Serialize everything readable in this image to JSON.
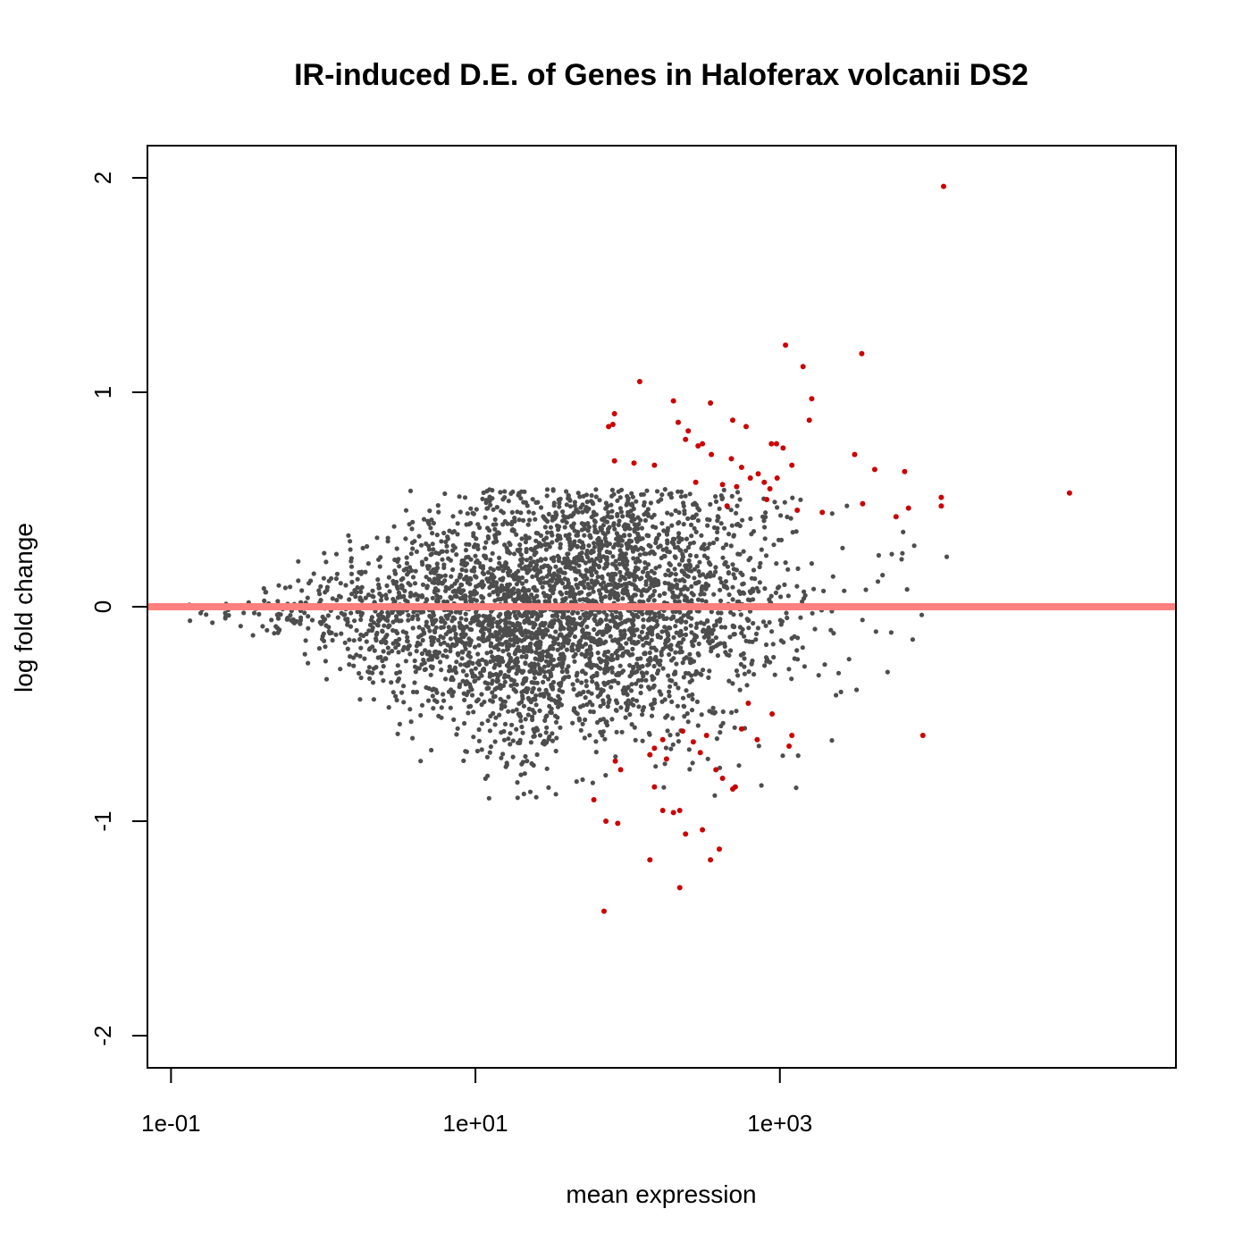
{
  "chart_data": {
    "type": "scatter",
    "title": "IR-induced D.E. of Genes in Haloferax volcanii DS2",
    "xlabel": "mean expression",
    "ylabel": "log fold change",
    "x_scale": "log10",
    "xlim": [
      0.07,
      400000
    ],
    "ylim": [
      -2.15,
      2.15
    ],
    "x_ticks": [
      {
        "value": 0.1,
        "label": "1e-01"
      },
      {
        "value": 10,
        "label": "1e+01"
      },
      {
        "value": 1000,
        "label": "1e+03"
      }
    ],
    "y_ticks": [
      {
        "value": -2,
        "label": "-2"
      },
      {
        "value": -1,
        "label": "-1"
      },
      {
        "value": 0,
        "label": "0"
      },
      {
        "value": 1,
        "label": "1"
      },
      {
        "value": 2,
        "label": "2"
      }
    ],
    "reference_line": {
      "y": 0,
      "color": "#ff7f7f"
    },
    "grid": false,
    "colors": {
      "not_significant": "#4d4d4d",
      "significant": "#cc0000"
    },
    "background_points_description_count": 3800,
    "series": [
      {
        "name": "",
        "color": "#cc0000",
        "points": [
          [
            11900,
            1.96
          ],
          [
            1090,
            1.22
          ],
          [
            3450,
            1.18
          ],
          [
            1420,
            1.12
          ],
          [
            120,
            1.05
          ],
          [
            1620,
            0.97
          ],
          [
            200,
            0.96
          ],
          [
            350,
            0.95
          ],
          [
            82,
            0.9
          ],
          [
            490,
            0.87
          ],
          [
            1560,
            0.87
          ],
          [
            215,
            0.86
          ],
          [
            80,
            0.85
          ],
          [
            75,
            0.84
          ],
          [
            600,
            0.84
          ],
          [
            250,
            0.82
          ],
          [
            240,
            0.78
          ],
          [
            310,
            0.76
          ],
          [
            290,
            0.75
          ],
          [
            355,
            0.71
          ],
          [
            480,
            0.69
          ],
          [
            1050,
            0.74
          ],
          [
            880,
            0.76
          ],
          [
            950,
            0.76
          ],
          [
            4200,
            0.64
          ],
          [
            6600,
            0.63
          ],
          [
            3100,
            0.71
          ],
          [
            560,
            0.65
          ],
          [
            720,
            0.62
          ],
          [
            640,
            0.6
          ],
          [
            82,
            0.68
          ],
          [
            110,
            0.67
          ],
          [
            150,
            0.66
          ],
          [
            280,
            0.58
          ],
          [
            420,
            0.57
          ],
          [
            520,
            0.56
          ],
          [
            790,
            0.58
          ],
          [
            860,
            0.55
          ],
          [
            960,
            0.6
          ],
          [
            1200,
            0.66
          ],
          [
            11500,
            0.51
          ],
          [
            11500,
            0.47
          ],
          [
            7000,
            0.46
          ],
          [
            5800,
            0.42
          ],
          [
            3500,
            0.48
          ],
          [
            80000,
            0.53
          ],
          [
            1900,
            0.44
          ],
          [
            1300,
            0.45
          ],
          [
            820,
            0.5
          ],
          [
            450,
            0.47
          ],
          [
            620,
            -0.45
          ],
          [
            890,
            -0.5
          ],
          [
            560,
            -0.57
          ],
          [
            710,
            -0.62
          ],
          [
            330,
            -0.6
          ],
          [
            300,
            -0.68
          ],
          [
            270,
            -0.63
          ],
          [
            230,
            -0.58
          ],
          [
            170,
            -0.62
          ],
          [
            150,
            -0.66
          ],
          [
            180,
            -0.71
          ],
          [
            140,
            -0.69
          ],
          [
            83,
            -0.72
          ],
          [
            90,
            -0.76
          ],
          [
            1200,
            -0.6
          ],
          [
            1150,
            -0.65
          ],
          [
            8700,
            -0.6
          ],
          [
            150,
            -0.84
          ],
          [
            380,
            -0.76
          ],
          [
            420,
            -0.8
          ],
          [
            510,
            -0.84
          ],
          [
            490,
            -0.85
          ],
          [
            60,
            -0.9
          ],
          [
            72,
            -1.0
          ],
          [
            86,
            -1.01
          ],
          [
            200,
            -0.96
          ],
          [
            170,
            -0.95
          ],
          [
            220,
            -0.95
          ],
          [
            240,
            -1.06
          ],
          [
            310,
            -1.04
          ],
          [
            140,
            -1.18
          ],
          [
            350,
            -1.18
          ],
          [
            400,
            -1.13
          ],
          [
            220,
            -1.31
          ],
          [
            70,
            -1.42
          ]
        ]
      }
    ]
  }
}
